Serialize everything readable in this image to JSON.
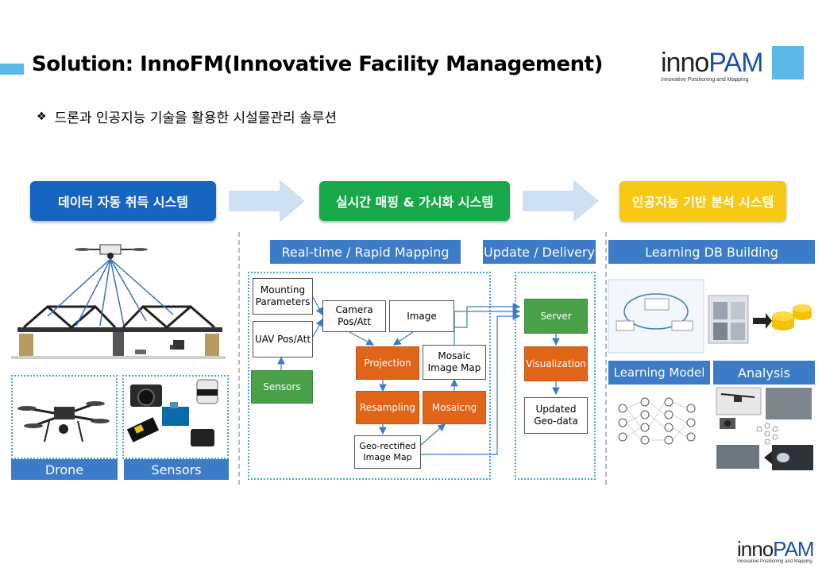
{
  "header": {
    "title": "Solution: InnoFM(Innovative Facility Management)",
    "subtitle": "드론과 인공지능 기술을 활용한 시설물관리 솔루션",
    "bullet": "❖"
  },
  "logo": {
    "inno": "inno",
    "pam": "PAM",
    "tagline_first": "I",
    "tagline_rest": "nnovative Positioning and Mapping"
  },
  "stages": {
    "acquisition": "데이터 자동 취득 시스템",
    "mapping": "실시간 매핑 & 가시화 시스템",
    "ai": "인공지능 기반 분석 시스템"
  },
  "sections": {
    "realtime": "Real-time / Rapid Mapping",
    "update": "Update / Delivery",
    "learning_db": "Learning DB Building",
    "learning_model": "Learning Model",
    "analysis": "Analysis",
    "drone": "Drone",
    "sensors": "Sensors"
  },
  "flow": {
    "mounting": "Mounting Parameters",
    "uav": "UAV Pos/Att",
    "camera": "Camera Pos/Att",
    "image": "Image",
    "projection": "Projection",
    "mosaic_map": "Mosaic Image Map",
    "sensors": "Sensors",
    "resampling": "Resampling",
    "mosaicing": "Mosaicng",
    "georect": "Geo-rectified Image Map",
    "server": "Server",
    "visualization": "Visualization",
    "updated": "Updated Geo-data"
  },
  "colors": {
    "stage_blue": "#1565c0",
    "stage_green": "#17a84a",
    "stage_yellow": "#f7c814",
    "label_blue": "#3b7bc7",
    "orange": "#e06519",
    "green_box": "#4aa14a",
    "accent": "#5bb8e8"
  }
}
